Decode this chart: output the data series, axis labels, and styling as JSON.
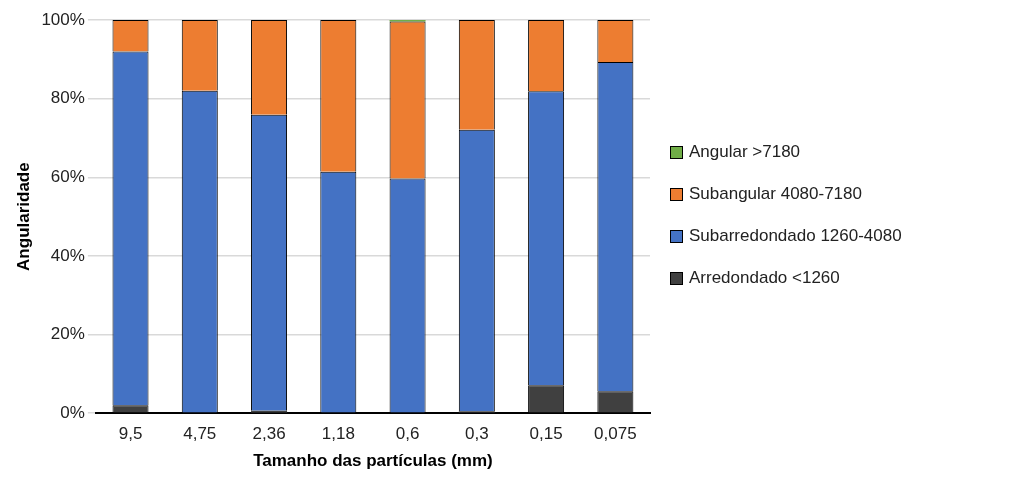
{
  "chart_data": {
    "type": "bar",
    "stacked": true,
    "xlabel": "Tamanho das partículas (mm)",
    "ylabel": "Angularidade",
    "categories": [
      "9,5",
      "4,75",
      "2,36",
      "1,18",
      "0,6",
      "0,3",
      "0,15",
      "0,075"
    ],
    "series": [
      {
        "name": "Arredondado <1260",
        "color": "#404040",
        "values": [
          2,
          0,
          0.6,
          0,
          0,
          0.5,
          7.1,
          5.6
        ]
      },
      {
        "name": "Subarredondado 1260-4080",
        "color": "#4472c4",
        "values": [
          90,
          82,
          75.3,
          61.4,
          59.7,
          71.6,
          74.8,
          83.7
        ]
      },
      {
        "name": "Subangular 4080-7180",
        "color": "#ed7d31",
        "values": [
          8,
          18,
          24.1,
          38.6,
          39.9,
          27.9,
          18.1,
          10.7
        ]
      },
      {
        "name": "Angular >7180",
        "color": "#70ad47",
        "values": [
          0,
          0,
          0,
          0,
          0.4,
          0,
          0,
          0
        ]
      }
    ],
    "ylim": [
      0,
      100
    ],
    "yticks": [
      {
        "value": 0,
        "label": "0%"
      },
      {
        "value": 20,
        "label": "20%"
      },
      {
        "value": 40,
        "label": "40%"
      },
      {
        "value": 60,
        "label": "60%"
      },
      {
        "value": 80,
        "label": "80%"
      },
      {
        "value": 100,
        "label": "100%"
      }
    ],
    "grid": "y",
    "legend": "right"
  }
}
